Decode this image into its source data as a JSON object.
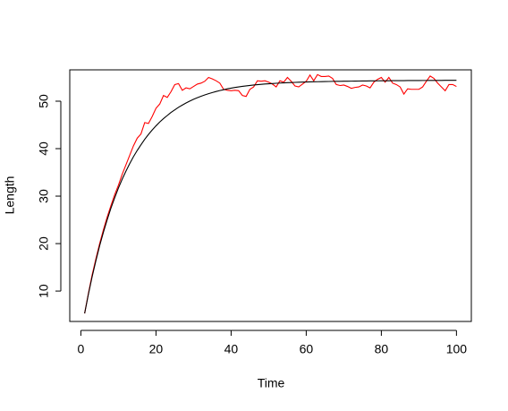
{
  "chart_data": {
    "type": "line",
    "x_label": "Time",
    "y_label": "Length",
    "x": [
      1,
      2,
      3,
      4,
      5,
      6,
      7,
      8,
      9,
      10,
      11,
      12,
      13,
      14,
      15,
      16,
      17,
      18,
      19,
      20,
      21,
      22,
      23,
      24,
      25,
      26,
      27,
      28,
      29,
      30,
      31,
      32,
      33,
      34,
      35,
      36,
      37,
      38,
      39,
      40,
      41,
      42,
      43,
      44,
      45,
      46,
      47,
      48,
      49,
      50,
      51,
      52,
      53,
      54,
      55,
      56,
      57,
      58,
      59,
      60,
      61,
      62,
      63,
      64,
      65,
      66,
      67,
      68,
      69,
      70,
      71,
      72,
      73,
      74,
      75,
      76,
      77,
      78,
      79,
      80,
      81,
      82,
      83,
      84,
      85,
      86,
      87,
      88,
      89,
      90,
      91,
      92,
      93,
      94,
      95,
      96,
      97,
      98,
      99,
      100
    ],
    "series": [
      {
        "color": "#ff0000",
        "values": [
          5.3,
          9.5,
          13.4,
          16.8,
          20.0,
          22.9,
          25.6,
          28.0,
          30.3,
          32.3,
          34.6,
          36.6,
          38.6,
          40.6,
          42.2,
          43.1,
          45.5,
          45.3,
          46.8,
          48.5,
          49.4,
          51.2,
          50.8,
          52.0,
          53.5,
          53.7,
          52.3,
          52.8,
          52.6,
          53.1,
          53.6,
          53.8,
          54.2,
          55.0,
          54.7,
          54.3,
          53.8,
          52.5,
          52.3,
          52.2,
          52.3,
          52.2,
          51.2,
          51.0,
          52.5,
          53.0,
          54.3,
          54.2,
          54.3,
          54.0,
          53.6,
          53.0,
          54.3,
          54.0,
          55.0,
          54.2,
          53.2,
          53.0,
          53.6,
          54.2,
          55.5,
          54.3,
          55.6,
          55.2,
          55.2,
          55.3,
          54.8,
          53.5,
          53.3,
          53.4,
          53.1,
          52.7,
          52.9,
          53.0,
          53.4,
          53.2,
          52.8,
          54.0,
          54.6,
          55.0,
          54.0,
          55.0,
          53.8,
          53.5,
          53.0,
          51.5,
          52.6,
          52.5,
          52.5,
          52.5,
          53.0,
          54.2,
          55.3,
          54.8,
          53.8,
          53.0,
          52.2,
          53.5,
          53.5,
          53.1
        ]
      },
      {
        "color": "#000000",
        "values": [
          5.29,
          9.32,
          13.02,
          16.4,
          19.56,
          22.4,
          25.02,
          27.47,
          29.65,
          31.72,
          33.57,
          35.26,
          36.84,
          38.31,
          39.62,
          40.82,
          41.97,
          43.0,
          43.93,
          44.8,
          45.62,
          46.33,
          46.98,
          47.63,
          48.18,
          48.72,
          49.18,
          49.62,
          50.02,
          50.39,
          50.72,
          51.03,
          51.32,
          51.58,
          51.82,
          52.04,
          52.24,
          52.42,
          52.6,
          52.75,
          52.88,
          53.0,
          53.12,
          53.22,
          53.31,
          53.4,
          53.48,
          53.55,
          53.61,
          53.67,
          53.72,
          53.77,
          53.82,
          53.86,
          53.9,
          53.93,
          53.96,
          53.99,
          54.02,
          54.04,
          54.06,
          54.08,
          54.1,
          54.12,
          54.14,
          54.15,
          54.17,
          54.18,
          54.19,
          54.2,
          54.21,
          54.22,
          54.23,
          54.24,
          54.25,
          54.26,
          54.27,
          54.28,
          54.29,
          54.3,
          54.31,
          54.31,
          54.32,
          54.32,
          54.33,
          54.33,
          54.34,
          54.34,
          54.35,
          54.35,
          54.36,
          54.36,
          54.37,
          54.37,
          54.38,
          54.38,
          54.39,
          54.39,
          54.4,
          54.4
        ]
      }
    ],
    "xlim": [
      -2.96,
      103.96
    ],
    "xticks": [
      0,
      20,
      40,
      60,
      80,
      100
    ],
    "ylim": [
      3.6,
      56.6
    ],
    "yticks": [
      10,
      20,
      30,
      40,
      50
    ]
  }
}
